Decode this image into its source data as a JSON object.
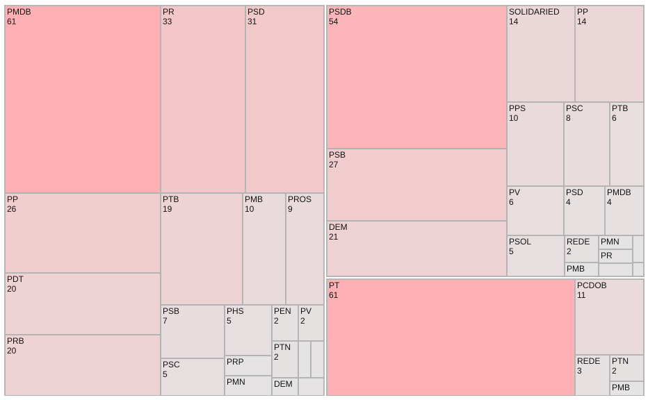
{
  "chart_data": {
    "type": "treemap",
    "color_scale": {
      "low": "#e5e3e3",
      "high": "#ffb0b4"
    },
    "groups": [
      {
        "children": [
          {
            "name": "PMDB",
            "value": 61
          },
          {
            "name": "PR",
            "value": 33
          },
          {
            "name": "PSD",
            "value": 31
          },
          {
            "name": "PP",
            "value": 26
          },
          {
            "name": "PDT",
            "value": 20
          },
          {
            "name": "PRB",
            "value": 20
          },
          {
            "name": "PTB",
            "value": 19
          },
          {
            "name": "PMB",
            "value": 10
          },
          {
            "name": "PROS",
            "value": 9
          },
          {
            "name": "PSB",
            "value": 7
          },
          {
            "name": "PHS",
            "value": 5
          },
          {
            "name": "PEN",
            "value": 2
          },
          {
            "name": "PV",
            "value": 2
          },
          {
            "name": "PTN",
            "value": 2
          },
          {
            "name": "PSC",
            "value": 5
          },
          {
            "name": "PRP",
            "value": null
          },
          {
            "name": "PMN",
            "value": null
          },
          {
            "name": "DEM",
            "value": null
          },
          {
            "name": "",
            "value": null
          },
          {
            "name": "",
            "value": null
          },
          {
            "name": "",
            "value": null
          }
        ]
      },
      {
        "children": [
          {
            "name": "PSDB",
            "value": 54
          },
          {
            "name": "SOLIDARIED",
            "value": 14
          },
          {
            "name": "PP",
            "value": 14
          },
          {
            "name": "PPS",
            "value": 10
          },
          {
            "name": "PSC",
            "value": 8
          },
          {
            "name": "PTB",
            "value": 6
          },
          {
            "name": "PSB",
            "value": 27
          },
          {
            "name": "PV",
            "value": 6
          },
          {
            "name": "PSD",
            "value": 4
          },
          {
            "name": "PMDB",
            "value": 4
          },
          {
            "name": "DEM",
            "value": 21
          },
          {
            "name": "PSOL",
            "value": 5
          },
          {
            "name": "REDE",
            "value": 2
          },
          {
            "name": "PMN",
            "value": null
          },
          {
            "name": "PR",
            "value": null
          },
          {
            "name": "PMB",
            "value": null
          },
          {
            "name": "",
            "value": null
          },
          {
            "name": "",
            "value": null
          },
          {
            "name": "",
            "value": null
          }
        ]
      },
      {
        "children": [
          {
            "name": "PT",
            "value": 61
          },
          {
            "name": "PCDOB",
            "value": 11
          },
          {
            "name": "REDE",
            "value": 3
          },
          {
            "name": "PTN",
            "value": 2
          },
          {
            "name": "PMB",
            "value": null
          }
        ]
      }
    ]
  }
}
